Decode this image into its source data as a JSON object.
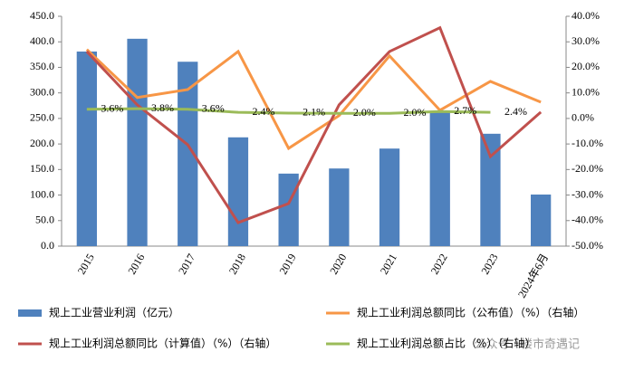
{
  "chart_data": {
    "type": "bar_line",
    "categories": [
      "2015",
      "2016",
      "2017",
      "2018",
      "2019",
      "2020",
      "2021",
      "2022",
      "2023",
      "2024年6月"
    ],
    "series": [
      {
        "name": "规上工业营业利润（亿元）",
        "type": "bar",
        "color": "#4f81bd",
        "axis": "y",
        "values": [
          381,
          406,
          361,
          213,
          142,
          152,
          191,
          262,
          220,
          101
        ]
      },
      {
        "name": "规上工业利润总额同比（公布值）（%）（右轴）",
        "type": "line",
        "color": "#f79646",
        "axis": "y2",
        "values": [
          27.0,
          8.2,
          11.3,
          26.2,
          -11.7,
          1.1,
          24.5,
          3.2,
          14.5,
          6.4
        ]
      },
      {
        "name": "规上工业利润总额同比（计算值）（%）（右轴）",
        "type": "line",
        "color": "#c0504d",
        "axis": "y2",
        "values": [
          26.2,
          5.3,
          -10.3,
          -40.8,
          -33.3,
          5.3,
          26.2,
          35.5,
          -14.9,
          2.5
        ]
      },
      {
        "name": "规上工业利润总额占比（%）（右轴）",
        "type": "line",
        "color": "#9bbb59",
        "axis": "y2",
        "values": [
          3.6,
          3.8,
          3.6,
          2.4,
          2.1,
          2.0,
          2.0,
          2.7,
          2.4,
          null
        ],
        "value_labels": [
          "3.6%",
          "3.8%",
          "3.6%",
          "2.4%",
          "2.1%",
          "2.0%",
          "2.0%",
          "2.7%",
          "2.4%",
          null
        ]
      }
    ],
    "ylim": [
      0,
      450
    ],
    "yticks": [
      {
        "value": 0,
        "label": "0.0"
      },
      {
        "value": 50,
        "label": "50.0"
      },
      {
        "value": 100,
        "label": "100.0"
      },
      {
        "value": 150,
        "label": "150.0"
      },
      {
        "value": 200,
        "label": "200.0"
      },
      {
        "value": 250,
        "label": "250.0"
      },
      {
        "value": 300,
        "label": "300.0"
      },
      {
        "value": 350,
        "label": "350.0"
      },
      {
        "value": 400,
        "label": "400.0"
      },
      {
        "value": 450,
        "label": "450.0"
      }
    ],
    "y2lim": [
      -50,
      40
    ],
    "y2ticks": [
      {
        "value": -50,
        "label": "-50.0%"
      },
      {
        "value": -40,
        "label": "-40.0%"
      },
      {
        "value": -30,
        "label": "-30.0%"
      },
      {
        "value": -20,
        "label": "-20.0%"
      },
      {
        "value": -10,
        "label": "-10.0%"
      },
      {
        "value": 0,
        "label": "0.0%"
      },
      {
        "value": 10,
        "label": "10.0%"
      },
      {
        "value": 20,
        "label": "20.0%"
      },
      {
        "value": 30,
        "label": "30.0%"
      },
      {
        "value": 40,
        "label": "40.0%"
      }
    ],
    "legend": "bottom",
    "watermark": "公众号 · 楼市奇遇记"
  }
}
